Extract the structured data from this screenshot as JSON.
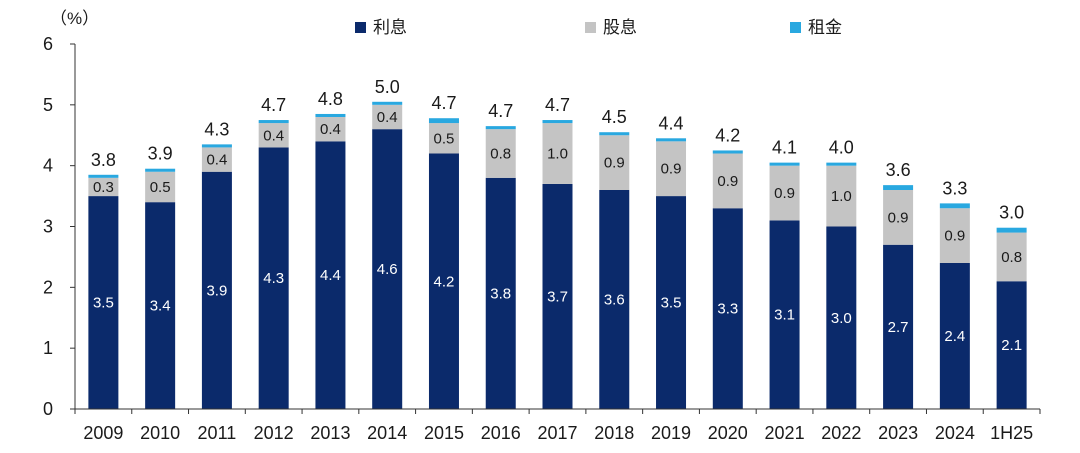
{
  "chart_data": {
    "type": "bar",
    "stacked": true,
    "unit_label": "（%）",
    "categories": [
      "2009",
      "2010",
      "2011",
      "2012",
      "2013",
      "2014",
      "2015",
      "2016",
      "2017",
      "2018",
      "2019",
      "2020",
      "2021",
      "2022",
      "2023",
      "2024",
      "1H25"
    ],
    "series": [
      {
        "name": "利息",
        "color": "#0b2a6b",
        "label_color": "#ffffff",
        "values": [
          3.5,
          3.4,
          3.9,
          4.3,
          4.4,
          4.6,
          4.2,
          3.8,
          3.7,
          3.6,
          3.5,
          3.3,
          3.1,
          3.0,
          2.7,
          2.4,
          2.1
        ]
      },
      {
        "name": "股息",
        "color": "#c4c4c4",
        "label_color": "#1a1a1a",
        "values": [
          0.3,
          0.5,
          0.4,
          0.4,
          0.4,
          0.4,
          0.5,
          0.8,
          1.0,
          0.9,
          0.9,
          0.9,
          0.9,
          1.0,
          0.9,
          0.9,
          0.8
        ]
      },
      {
        "name": "租金",
        "color": "#29a8e0",
        "values": [
          0.05,
          0.05,
          0.05,
          0.05,
          0.05,
          0.05,
          0.08,
          0.05,
          0.05,
          0.05,
          0.05,
          0.05,
          0.05,
          0.05,
          0.08,
          0.08,
          0.08
        ]
      }
    ],
    "totals": [
      "3.8",
      "3.9",
      "4.3",
      "4.7",
      "4.8",
      "5.0",
      "4.7",
      "4.7",
      "4.7",
      "4.5",
      "4.4",
      "4.2",
      "4.1",
      "4.0",
      "3.6",
      "3.3",
      "3.0"
    ],
    "yticks": [
      "0",
      "1",
      "2",
      "3",
      "4",
      "5",
      "6"
    ],
    "ylim": [
      0,
      6
    ],
    "grid": false,
    "legend_position": "top-center"
  }
}
